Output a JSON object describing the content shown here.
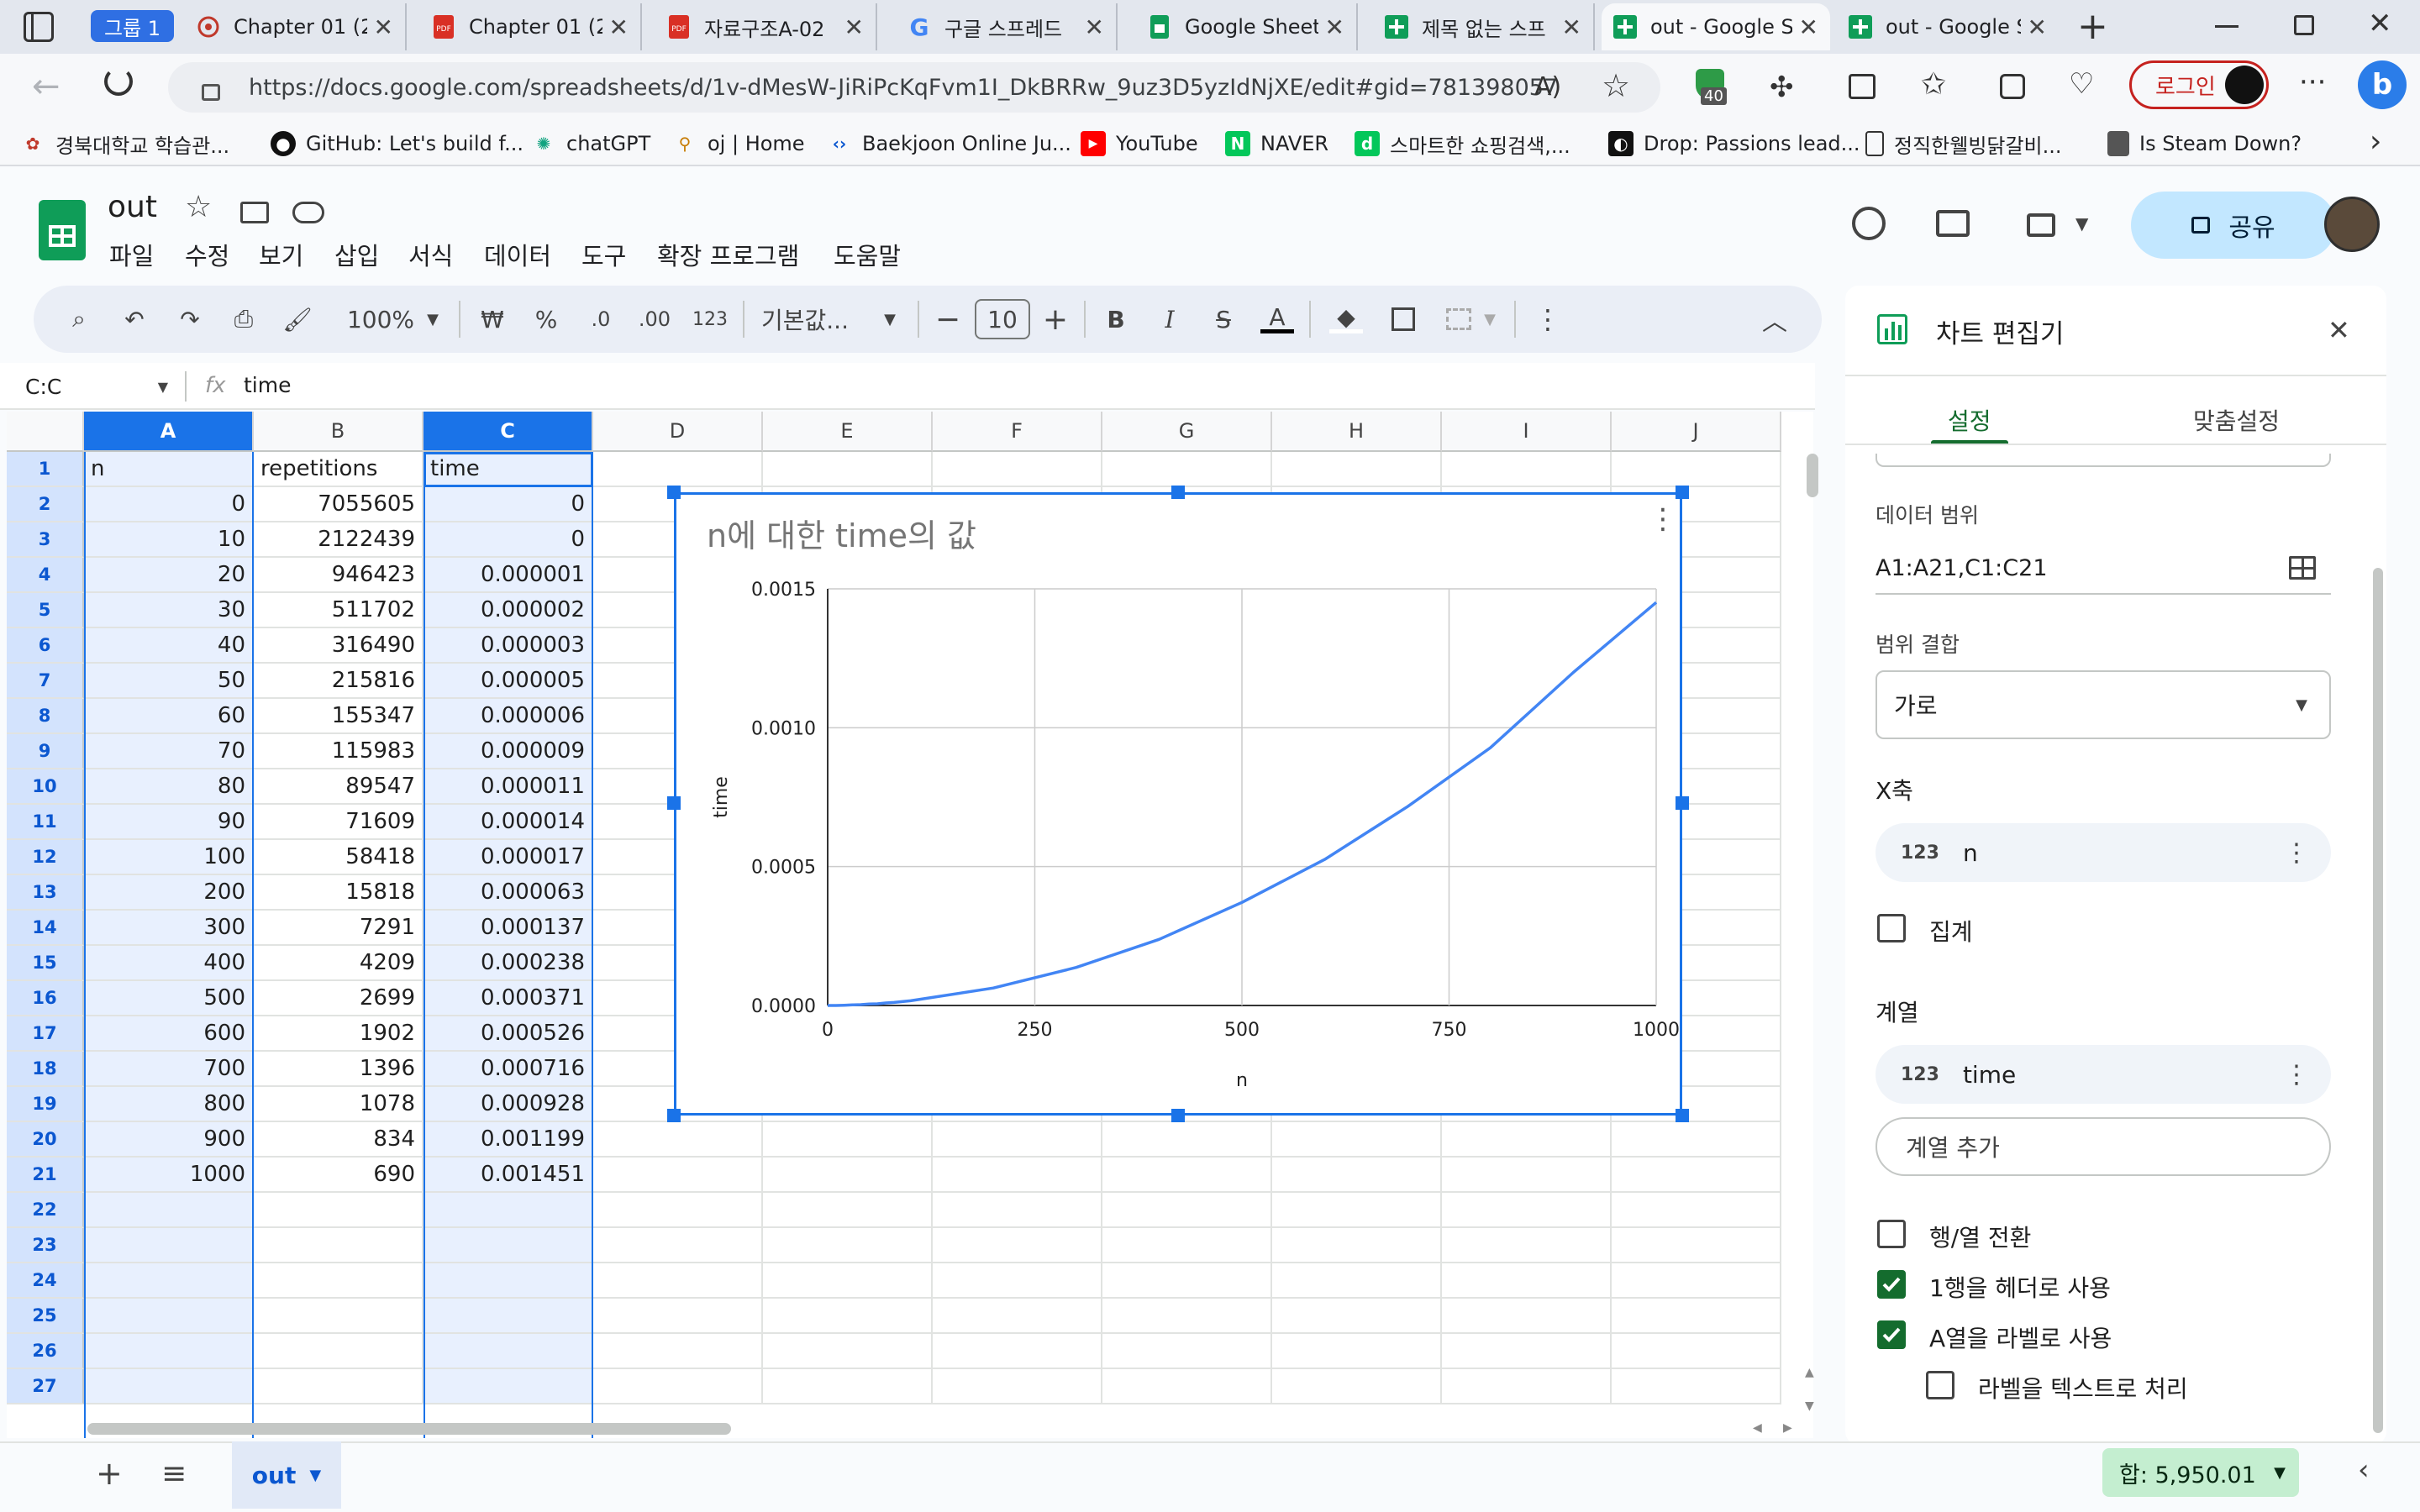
{
  "browser": {
    "group_label": "그룹 1",
    "tabs": [
      {
        "title": "Chapter 01 (2)",
        "icon": "flower-icon"
      },
      {
        "title": "Chapter 01 (2)",
        "icon": "pdf-icon"
      },
      {
        "title": "자료구조A-02",
        "icon": "pdf-icon"
      },
      {
        "title": "구글 스프레드",
        "icon": "google-icon"
      },
      {
        "title": "Google Sheets",
        "icon": "sheets-icon"
      },
      {
        "title": "제목 없는 스프",
        "icon": "sheets-plus-icon"
      },
      {
        "title": "out - Google S",
        "icon": "sheets-plus-icon"
      },
      {
        "title": "out - Google S",
        "icon": "sheets-plus-icon"
      }
    ],
    "url": "https://docs.google.com/spreadsheets/d/1v-dMesW-JiRiPcKqFvm1I_DkBRRw_9uz3D5yzIdNjXE/edit#gid=781398057",
    "extension_badge": "40",
    "login_label": "로그인",
    "bookmarks": [
      "경북대학교 학습관...",
      "GitHub: Let's build f...",
      "chatGPT",
      "oj | Home",
      "Baekjoon Online Ju...",
      "YouTube",
      "NAVER",
      "스마트한 쇼핑검색,...",
      "Drop: Passions lead...",
      "정직한웰빙닭갈비...",
      "Is Steam Down?"
    ]
  },
  "doc": {
    "title": "out",
    "menus": [
      "파일",
      "수정",
      "보기",
      "삽입",
      "서식",
      "데이터",
      "도구",
      "확장 프로그램",
      "도움말"
    ],
    "share_label": "공유"
  },
  "toolbar": {
    "zoom": "100%",
    "currency": "₩",
    "percent": "%",
    "dec_minus": ".0",
    "dec_plus": ".00",
    "number_format": "123",
    "font": "기본값...",
    "font_size": "10",
    "bold": "B",
    "italic": "I"
  },
  "formula": {
    "name_box": "C:C",
    "fx": "fx",
    "content": "time"
  },
  "columns": [
    "A",
    "B",
    "C",
    "D",
    "E",
    "F",
    "G",
    "H",
    "I",
    "J"
  ],
  "rows": [
    [
      "n",
      "repetitions",
      "time"
    ],
    [
      "0",
      "7055605",
      "0"
    ],
    [
      "10",
      "2122439",
      "0"
    ],
    [
      "20",
      "946423",
      "0.000001"
    ],
    [
      "30",
      "511702",
      "0.000002"
    ],
    [
      "40",
      "316490",
      "0.000003"
    ],
    [
      "50",
      "215816",
      "0.000005"
    ],
    [
      "60",
      "155347",
      "0.000006"
    ],
    [
      "70",
      "115983",
      "0.000009"
    ],
    [
      "80",
      "89547",
      "0.000011"
    ],
    [
      "90",
      "71609",
      "0.000014"
    ],
    [
      "100",
      "58418",
      "0.000017"
    ],
    [
      "200",
      "15818",
      "0.000063"
    ],
    [
      "300",
      "7291",
      "0.000137"
    ],
    [
      "400",
      "4209",
      "0.000238"
    ],
    [
      "500",
      "2699",
      "0.000371"
    ],
    [
      "600",
      "1902",
      "0.000526"
    ],
    [
      "700",
      "1396",
      "0.000716"
    ],
    [
      "800",
      "1078",
      "0.000928"
    ],
    [
      "900",
      "834",
      "0.001199"
    ],
    [
      "1000",
      "690",
      "0.001451"
    ],
    [
      "",
      "",
      ""
    ],
    [
      "",
      "",
      ""
    ],
    [
      "",
      "",
      ""
    ],
    [
      "",
      "",
      ""
    ],
    [
      "",
      "",
      ""
    ],
    [
      "",
      "",
      ""
    ]
  ],
  "row_numbers": [
    "1",
    "2",
    "3",
    "4",
    "5",
    "6",
    "7",
    "8",
    "9",
    "10",
    "11",
    "12",
    "13",
    "14",
    "15",
    "16",
    "17",
    "18",
    "19",
    "20",
    "21",
    "22",
    "23",
    "24",
    "25",
    "26",
    "27"
  ],
  "chart_data": {
    "type": "line",
    "title": "n에 대한 time의 값",
    "xlabel": "n",
    "ylabel": "time",
    "x": [
      0,
      10,
      20,
      30,
      40,
      50,
      60,
      70,
      80,
      90,
      100,
      200,
      300,
      400,
      500,
      600,
      700,
      800,
      900,
      1000
    ],
    "series": [
      {
        "name": "time",
        "color": "#4285f4",
        "values": [
          0,
          0,
          1e-06,
          2e-06,
          3e-06,
          5e-06,
          6e-06,
          9e-06,
          1.1e-05,
          1.4e-05,
          1.7e-05,
          6.3e-05,
          0.000137,
          0.000238,
          0.000371,
          0.000526,
          0.000716,
          0.000928,
          0.001199,
          0.001451
        ]
      }
    ],
    "xlim": [
      0,
      1000
    ],
    "ylim": [
      0,
      0.0015
    ],
    "xticks": [
      "0",
      "250",
      "500",
      "750",
      "1000"
    ],
    "yticks": [
      "0.0000",
      "0.0005",
      "0.0010",
      "0.0015"
    ],
    "grid": true,
    "legend": "none"
  },
  "editor": {
    "title": "차트 편집기",
    "tab_setup": "설정",
    "tab_customize": "맞춤설정",
    "data_range_label": "데이터 범위",
    "data_range": "A1:A21,C1:C21",
    "combine_label": "범위 결합",
    "combine_value": "가로",
    "xaxis_label": "X축",
    "xaxis_value": "n",
    "xaxis_type": "123",
    "aggregate": "집계",
    "series_label": "계열",
    "series_value": "time",
    "series_type": "123",
    "add_series": "계열 추가",
    "switch_rows": "행/열 전환",
    "use_header": "1행을 헤더로 사용",
    "use_labels": "A열을 라벨로 사용",
    "labels_as_text": "라벨을 텍스트로 처리"
  },
  "sheet_tab": "out",
  "sum_label": "합: 5,950.01"
}
